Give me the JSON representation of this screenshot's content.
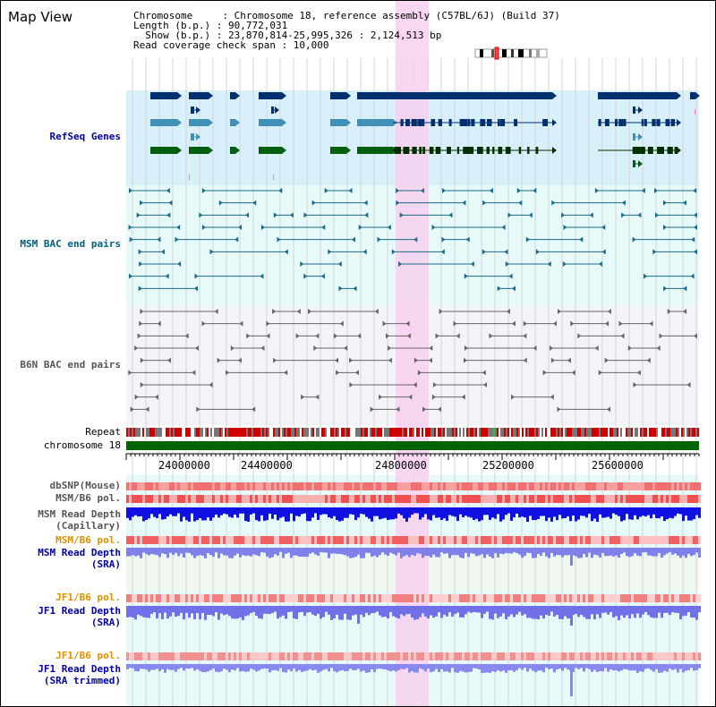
{
  "header": {
    "title": "Map View",
    "info_lines": [
      "Chromosome     : Chromosome 18, reference assembly (C57BL/6J) (Build 37)",
      "Length (b.p.) : 90,772,031",
      "  Show (b.p.) : 23,870,814-25,995,326 : 2,124,513 bp",
      "Read coverage check span : 10,000"
    ]
  },
  "tracks": {
    "refseq": "RefSeq Genes",
    "msm_bac": "MSM BAC end pairs",
    "b6n_bac": "B6N BAC end pairs",
    "repeat": "Repeat",
    "chromosome": "chromosome 18",
    "dbsnp": "dbSNP(Mouse)",
    "msm_b6_pol_1": "MSM/B6 pol.",
    "msm_depth_cap_1": "MSM Read Depth",
    "msm_depth_cap_2": "(Capillary)",
    "msm_b6_pol_2": "MSM/B6 pol.",
    "msm_depth_sra_1": "MSM Read Depth",
    "msm_depth_sra_2": "(SRA)",
    "jf1_pol_1": "JF1/B6 pol.",
    "jf1_depth_sra_1": "JF1 Read Depth",
    "jf1_depth_sra_2": "(SRA)",
    "jf1_pol_2": "JF1/B6 pol.",
    "jf1_depth_trim_1": "JF1 Read Depth",
    "jf1_depth_trim_2": "(SRA trimmed)"
  },
  "axis": {
    "ticks": [
      "24000000",
      "24400000",
      "24800000",
      "25200000",
      "25600000"
    ]
  },
  "colors": {
    "refseq_bg": "#d8f0fa",
    "msm_bg": "#e6fafa",
    "b6n_bg": "#f4f4f8",
    "highlight": "#f8d0f0",
    "gene_dark": "#003070",
    "gene_mid": "#4090b8",
    "gene_green": "#006010",
    "chromosome_bar": "#006400"
  }
}
